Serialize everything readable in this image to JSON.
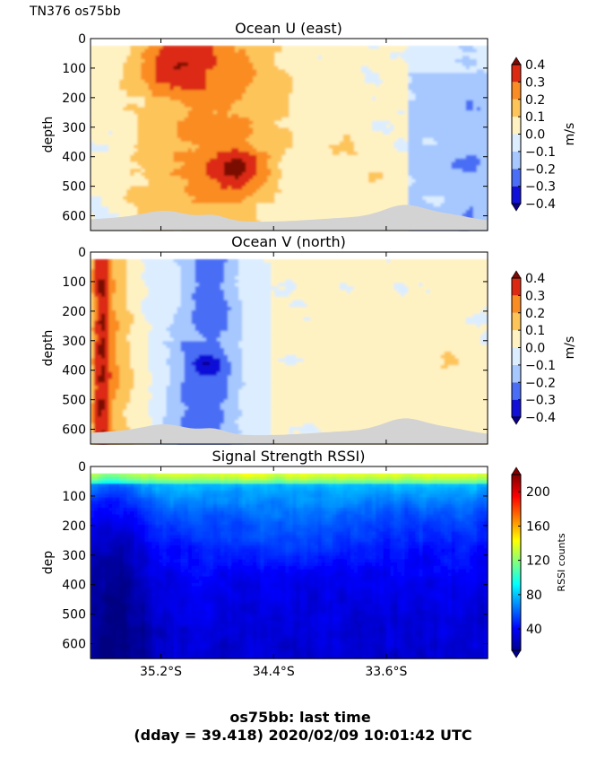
{
  "figure": {
    "corner_label": "TN376 os75bb",
    "footer_line1": "os75bb: last time",
    "footer_line2": "(dday = 39.418) 2020/02/09 10:01:42 UTC"
  },
  "chart_data": [
    {
      "type": "heatmap",
      "title": "Ocean U (east)",
      "ylabel": "depth",
      "ylim": [
        650,
        0
      ],
      "yticks": [
        0,
        100,
        200,
        300,
        400,
        500,
        600
      ],
      "ytick_labels": [
        "0",
        "100",
        "200",
        "300",
        "400",
        "500",
        "600"
      ],
      "xticks_lat": [
        -35.2,
        -34.4,
        -33.6
      ],
      "colorbar": {
        "label": "m/s",
        "ticks": [
          0.4,
          0.3,
          0.2,
          0.1,
          0.0,
          -0.1,
          -0.2,
          -0.3,
          -0.4
        ],
        "tick_labels": [
          "0.4",
          "0.3",
          "0.2",
          "0.1",
          "0.0",
          "−0.1",
          "−0.2",
          "−0.3",
          "−0.4"
        ],
        "levels": [
          -0.4,
          -0.3,
          -0.2,
          -0.1,
          0.0,
          0.1,
          0.2,
          0.3,
          0.4
        ],
        "colors": [
          "#1010d8",
          "#4a6ef5",
          "#a6c8ff",
          "#dcedff",
          "#fff2c2",
          "#fdc45a",
          "#fa8c24",
          "#dc2a12"
        ],
        "over_color": "#7a0a05",
        "under_color": "#0b0083"
      },
      "no_data_color": "#d3d3d3"
    },
    {
      "type": "heatmap",
      "title": "Ocean V (north)",
      "ylabel": "depth",
      "ylim": [
        650,
        0
      ],
      "yticks": [
        0,
        100,
        200,
        300,
        400,
        500,
        600
      ],
      "ytick_labels": [
        "0",
        "100",
        "200",
        "300",
        "400",
        "500",
        "600"
      ],
      "xticks_lat": [
        -35.2,
        -34.4,
        -33.6
      ],
      "colorbar": {
        "label": "m/s",
        "ticks": [
          0.4,
          0.3,
          0.2,
          0.1,
          0.0,
          -0.1,
          -0.2,
          -0.3,
          -0.4
        ],
        "tick_labels": [
          "0.4",
          "0.3",
          "0.2",
          "0.1",
          "0.0",
          "−0.1",
          "−0.2",
          "−0.3",
          "−0.4"
        ],
        "levels": [
          -0.4,
          -0.3,
          -0.2,
          -0.1,
          0.0,
          0.1,
          0.2,
          0.3,
          0.4
        ],
        "colors": [
          "#1010d8",
          "#4a6ef5",
          "#a6c8ff",
          "#dcedff",
          "#fff2c2",
          "#fdc45a",
          "#fa8c24",
          "#dc2a12"
        ],
        "over_color": "#7a0a05",
        "under_color": "#0b0083"
      },
      "no_data_color": "#d3d3d3"
    },
    {
      "type": "heatmap",
      "title": "Signal Strength RSSI)",
      "ylabel": "dep",
      "ylim": [
        650,
        0
      ],
      "yticks": [
        0,
        100,
        200,
        300,
        400,
        500,
        600
      ],
      "ytick_labels": [
        "0",
        "100",
        "200",
        "300",
        "400",
        "500",
        "600"
      ],
      "xticks_lat": [
        -35.2,
        -34.4,
        -33.6
      ],
      "xtick_labels": [
        "35.2°S",
        "34.4°S",
        "33.6°S"
      ],
      "colorbar": {
        "label": "RSSI counts",
        "range": [
          15,
          220
        ],
        "ticks": [
          200,
          160,
          120,
          80,
          40
        ],
        "tick_labels": [
          "200",
          "160",
          "120",
          "80",
          "40"
        ],
        "colormap": "jet"
      }
    }
  ]
}
